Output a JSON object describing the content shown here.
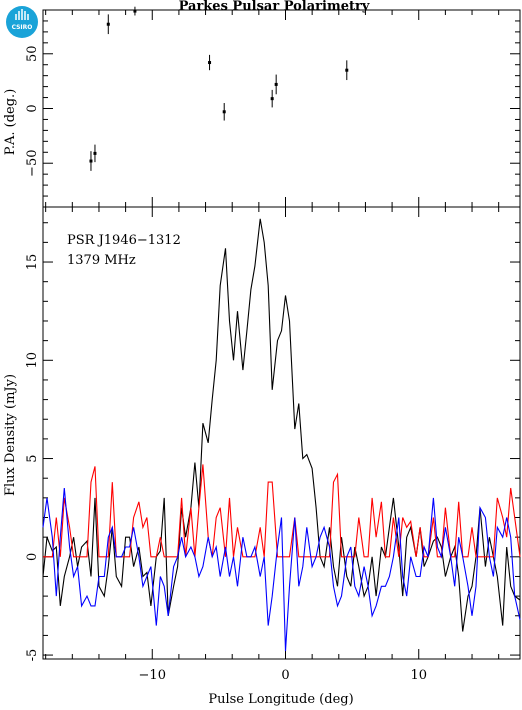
{
  "chart_data": [
    {
      "type": "scatter",
      "title": "Parkes Pulsar Polarimetry",
      "ylabel": "P.A. (deg.)",
      "xlim": [
        -18.2,
        17.6
      ],
      "ylim": [
        -90,
        90
      ],
      "yticks": [
        -50,
        0,
        50
      ],
      "points": [
        {
          "x": -14.6,
          "y": -48,
          "err": 9
        },
        {
          "x": -14.3,
          "y": -41,
          "err": 8
        },
        {
          "x": -13.3,
          "y": 77,
          "err": 9
        },
        {
          "x": -11.3,
          "y": 89,
          "err": 4
        },
        {
          "x": -5.7,
          "y": 42,
          "err": 7
        },
        {
          "x": -4.6,
          "y": -3,
          "err": 8
        },
        {
          "x": -1.0,
          "y": 9,
          "err": 8
        },
        {
          "x": -0.7,
          "y": 22,
          "err": 9
        },
        {
          "x": 4.6,
          "y": 35,
          "err": 9
        }
      ]
    },
    {
      "type": "line",
      "xlabel": "Pulse Longitude (deg)",
      "ylabel": "Flux Density (mJy)",
      "xlim": [
        -18.2,
        17.6
      ],
      "ylim": [
        -5.2,
        17.8
      ],
      "xticks": [
        -10,
        0,
        10
      ],
      "xtick_labels": [
        "−10",
        "0",
        "10"
      ],
      "yticks": [
        -5,
        0,
        5,
        10,
        15
      ],
      "annotations": [
        "PSR J1946−1312",
        "1379 MHz"
      ],
      "series": [
        {
          "color": "#000000",
          "x": [
            -18.2,
            -17.9,
            -17.5,
            -17.2,
            -16.9,
            -16.6,
            -16.2,
            -15.9,
            -15.6,
            -15.3,
            -14.9,
            -14.6,
            -14.3,
            -14.0,
            -13.6,
            -13.3,
            -13.0,
            -12.7,
            -12.3,
            -12.0,
            -11.7,
            -11.4,
            -11.0,
            -10.7,
            -10.4,
            -10.1,
            -9.7,
            -9.4,
            -9.1,
            -8.8,
            -8.4,
            -8.1,
            -7.8,
            -7.5,
            -7.1,
            -6.8,
            -6.5,
            -6.2,
            -5.8,
            -5.5,
            -5.2,
            -4.9,
            -4.5,
            -4.2,
            -3.9,
            -3.6,
            -3.2,
            -2.9,
            -2.6,
            -2.3,
            -1.9,
            -1.6,
            -1.3,
            -1.0,
            -0.6,
            -0.3,
            0.0,
            0.3,
            0.7,
            1.0,
            1.3,
            1.6,
            2.0,
            2.3,
            2.6,
            2.9,
            3.3,
            3.6,
            3.9,
            4.2,
            4.6,
            4.9,
            5.2,
            5.5,
            5.9,
            6.2,
            6.5,
            6.8,
            7.2,
            7.5,
            7.8,
            8.1,
            8.5,
            8.8,
            9.1,
            9.4,
            9.8,
            10.1,
            10.4,
            10.7,
            11.1,
            11.4,
            11.7,
            12.0,
            12.4,
            12.7,
            13.0,
            13.3,
            13.7,
            14.0,
            14.3,
            14.6,
            15.0,
            15.3,
            15.6,
            15.9,
            16.3,
            16.6,
            16.9,
            17.2,
            17.6
          ],
          "y": [
            -1.0,
            1.0,
            0.3,
            0.5,
            -2.5,
            -1.0,
            0.0,
            1.0,
            -0.5,
            0.5,
            0.8,
            -1.0,
            3.0,
            -1.5,
            -2.0,
            -0.5,
            1.5,
            -1.0,
            -1.5,
            1.0,
            1.0,
            -0.5,
            0.5,
            -1.0,
            -0.8,
            -2.5,
            0.0,
            0.3,
            3.0,
            -3.0,
            -1.5,
            -0.5,
            2.5,
            1.0,
            2.5,
            4.8,
            2.5,
            6.8,
            5.8,
            8.0,
            10.0,
            13.8,
            15.7,
            12.0,
            10.0,
            12.5,
            9.5,
            11.5,
            13.6,
            14.8,
            17.2,
            16.0,
            13.8,
            8.5,
            11.0,
            11.5,
            13.3,
            12.0,
            6.5,
            7.8,
            5.0,
            5.2,
            4.5,
            2.5,
            0.0,
            -0.5,
            1.5,
            -0.5,
            -1.5,
            1.0,
            -1.0,
            -1.5,
            0.5,
            -0.5,
            -2.0,
            -1.5,
            0.0,
            -2.0,
            0.5,
            0.0,
            1.5,
            3.0,
            0.5,
            -2.0,
            1.0,
            1.5,
            0.0,
            1.5,
            -0.5,
            0.0,
            0.8,
            1.0,
            0.5,
            -1.0,
            0.0,
            0.5,
            -1.0,
            -3.8,
            -2.0,
            -1.5,
            0.0,
            2.5,
            -0.5,
            1.0,
            0.0,
            -1.0,
            -3.5,
            0.5,
            -1.5,
            -2.0,
            -2.2
          ]
        },
        {
          "color": "#ff0000",
          "x": [
            -18.2,
            -17.9,
            -17.5,
            -17.2,
            -16.9,
            -16.6,
            -16.2,
            -15.9,
            -15.6,
            -15.3,
            -14.9,
            -14.6,
            -14.3,
            -14.0,
            -13.6,
            -13.3,
            -13.0,
            -12.7,
            -12.3,
            -12.0,
            -11.7,
            -11.4,
            -11.0,
            -10.7,
            -10.4,
            -10.1,
            -9.7,
            -9.4,
            -9.1,
            -8.8,
            -8.4,
            -8.1,
            -7.8,
            -7.5,
            -7.1,
            -6.8,
            -6.5,
            -6.2,
            -5.8,
            -5.5,
            -5.2,
            -4.9,
            -4.5,
            -4.2,
            -3.9,
            -3.6,
            -3.2,
            -2.9,
            -2.6,
            -2.3,
            -1.9,
            -1.6,
            -1.3,
            -1.0,
            -0.6,
            -0.3,
            0.0,
            0.3,
            0.7,
            1.0,
            1.3,
            1.6,
            2.0,
            2.3,
            2.6,
            2.9,
            3.3,
            3.6,
            3.9,
            4.2,
            4.6,
            4.9,
            5.2,
            5.5,
            5.9,
            6.2,
            6.5,
            6.8,
            7.2,
            7.5,
            7.8,
            8.1,
            8.5,
            8.8,
            9.1,
            9.4,
            9.8,
            10.1,
            10.4,
            10.7,
            11.1,
            11.4,
            11.7,
            12.0,
            12.4,
            12.7,
            13.0,
            13.3,
            13.7,
            14.0,
            14.3,
            14.6,
            15.0,
            15.3,
            15.6,
            15.9,
            16.3,
            16.6,
            16.9,
            17.2,
            17.6
          ],
          "y": [
            0.0,
            0.0,
            0.0,
            2.0,
            0.0,
            3.0,
            1.5,
            0.0,
            0.0,
            0.0,
            0.0,
            3.8,
            4.6,
            0.0,
            0.0,
            0.0,
            3.8,
            0.0,
            0.0,
            0.0,
            0.0,
            2.0,
            2.8,
            1.5,
            2.0,
            0.0,
            0.0,
            1.0,
            0.0,
            0.0,
            0.0,
            0.0,
            3.0,
            0.0,
            2.5,
            0.0,
            2.5,
            4.7,
            1.0,
            0.0,
            2.0,
            2.5,
            0.0,
            3.0,
            0.0,
            1.5,
            0.0,
            0.0,
            0.0,
            0.0,
            1.5,
            0.0,
            3.8,
            3.8,
            0.0,
            0.0,
            0.0,
            0.0,
            2.0,
            0.0,
            0.0,
            0.0,
            0.0,
            0.0,
            0.0,
            0.0,
            0.0,
            3.8,
            4.2,
            0.0,
            0.0,
            0.0,
            0.0,
            2.0,
            0.0,
            0.0,
            3.0,
            1.0,
            2.8,
            0.0,
            0.0,
            2.0,
            0.0,
            2.0,
            1.5,
            1.8,
            0.0,
            1.5,
            0.0,
            0.0,
            2.0,
            0.0,
            0.0,
            2.5,
            0.0,
            0.0,
            2.8,
            0.0,
            0.0,
            1.5,
            0.0,
            0.0,
            0.0,
            0.0,
            0.0,
            3.0,
            2.0,
            1.0,
            3.5,
            2.0,
            0.0
          ]
        },
        {
          "color": "#0000ff",
          "x": [
            -18.2,
            -17.9,
            -17.5,
            -17.2,
            -16.9,
            -16.6,
            -16.2,
            -15.9,
            -15.6,
            -15.3,
            -14.9,
            -14.6,
            -14.3,
            -14.0,
            -13.6,
            -13.3,
            -13.0,
            -12.7,
            -12.3,
            -12.0,
            -11.7,
            -11.4,
            -11.0,
            -10.7,
            -10.4,
            -10.1,
            -9.7,
            -9.4,
            -9.1,
            -8.8,
            -8.4,
            -8.1,
            -7.8,
            -7.5,
            -7.1,
            -6.8,
            -6.5,
            -6.2,
            -5.8,
            -5.5,
            -5.2,
            -4.9,
            -4.5,
            -4.2,
            -3.9,
            -3.6,
            -3.2,
            -2.9,
            -2.6,
            -2.3,
            -1.9,
            -1.6,
            -1.3,
            -1.0,
            -0.6,
            -0.3,
            0.0,
            0.3,
            0.7,
            1.0,
            1.3,
            1.6,
            2.0,
            2.3,
            2.6,
            2.9,
            3.3,
            3.6,
            3.9,
            4.2,
            4.6,
            4.9,
            5.2,
            5.5,
            5.9,
            6.2,
            6.5,
            6.8,
            7.2,
            7.5,
            7.8,
            8.1,
            8.5,
            8.8,
            9.1,
            9.4,
            9.8,
            10.1,
            10.4,
            10.7,
            11.1,
            11.4,
            11.7,
            12.0,
            12.4,
            12.7,
            13.0,
            13.3,
            13.7,
            14.0,
            14.3,
            14.6,
            15.0,
            15.3,
            15.6,
            15.9,
            16.3,
            16.6,
            16.9,
            17.2,
            17.6
          ],
          "y": [
            1.5,
            3.0,
            1.0,
            -2.0,
            1.0,
            3.5,
            0.5,
            -1.0,
            -0.5,
            -2.5,
            -2.0,
            -2.5,
            -2.5,
            -1.0,
            -1.0,
            1.0,
            1.5,
            0.0,
            0.0,
            0.5,
            0.5,
            1.5,
            0.0,
            -1.5,
            -1.0,
            -0.5,
            -3.5,
            -1.0,
            -1.5,
            -3.0,
            -0.5,
            0.0,
            1.0,
            0.0,
            0.5,
            0.0,
            -1.0,
            -0.5,
            1.0,
            0.0,
            0.5,
            -1.0,
            0.5,
            -1.0,
            0.0,
            -1.5,
            1.0,
            0.0,
            0.0,
            0.5,
            -1.0,
            0.0,
            -3.5,
            -2.0,
            0.5,
            2.0,
            -4.8,
            -1.5,
            2.0,
            -1.5,
            -0.5,
            1.5,
            -0.5,
            0.0,
            1.0,
            1.5,
            0.5,
            -1.5,
            -2.5,
            -2.0,
            0.0,
            0.5,
            -1.5,
            -2.0,
            -0.5,
            -1.5,
            -3.0,
            -2.5,
            -1.5,
            -1.5,
            -1.0,
            0.0,
            2.0,
            -1.0,
            -2.0,
            0.0,
            -1.0,
            -1.0,
            0.5,
            0.0,
            3.0,
            0.5,
            0.0,
            1.5,
            0.0,
            -1.5,
            1.0,
            0.0,
            -1.5,
            -3.0,
            -1.5,
            2.5,
            2.0,
            0.0,
            -1.0,
            1.5,
            1.0,
            2.0,
            1.0,
            -2.0,
            -3.2
          ]
        }
      ]
    }
  ]
}
